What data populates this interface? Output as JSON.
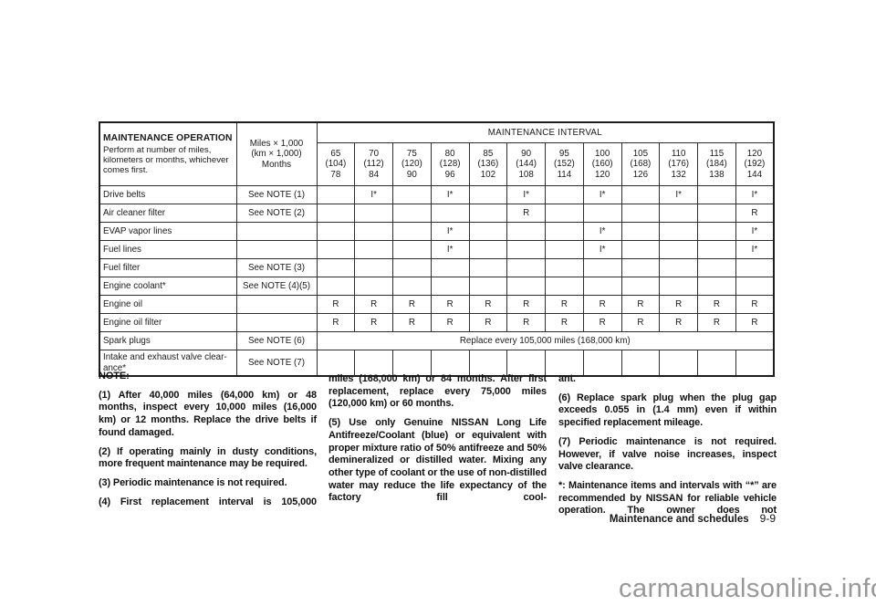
{
  "table": {
    "operation_title": "MAINTENANCE OPERATION",
    "operation_note": "Perform at number of miles, kilometers or months, whichever comes first.",
    "units": [
      "Miles × 1,000",
      "(km × 1,000)",
      "Months"
    ],
    "interval_title": "MAINTENANCE INTERVAL",
    "intervals": [
      {
        "miles": "65",
        "km": "(104)",
        "months": "78"
      },
      {
        "miles": "70",
        "km": "(112)",
        "months": "84"
      },
      {
        "miles": "75",
        "km": "(120)",
        "months": "90"
      },
      {
        "miles": "80",
        "km": "(128)",
        "months": "96"
      },
      {
        "miles": "85",
        "km": "(136)",
        "months": "102"
      },
      {
        "miles": "90",
        "km": "(144)",
        "months": "108"
      },
      {
        "miles": "95",
        "km": "(152)",
        "months": "114"
      },
      {
        "miles": "100",
        "km": "(160)",
        "months": "120"
      },
      {
        "miles": "105",
        "km": "(168)",
        "months": "126"
      },
      {
        "miles": "110",
        "km": "(176)",
        "months": "132"
      },
      {
        "miles": "115",
        "km": "(184)",
        "months": "138"
      },
      {
        "miles": "120",
        "km": "(192)",
        "months": "144"
      }
    ],
    "rows": [
      {
        "operation": [
          "Drive belts"
        ],
        "note": "See NOTE (1)",
        "cells": [
          "",
          "I*",
          "",
          "I*",
          "",
          "I*",
          "",
          "I*",
          "",
          "I*",
          "",
          "I*"
        ]
      },
      {
        "operation": [
          "Air cleaner filter"
        ],
        "note": "See NOTE (2)",
        "cells": [
          "",
          "",
          "",
          "",
          "",
          "R",
          "",
          "",
          "",
          "",
          "",
          "R"
        ]
      },
      {
        "operation": [
          "EVAP vapor lines"
        ],
        "note": "",
        "cells": [
          "",
          "",
          "",
          "I*",
          "",
          "",
          "",
          "I*",
          "",
          "",
          "",
          "I*"
        ]
      },
      {
        "operation": [
          "Fuel lines"
        ],
        "note": "",
        "cells": [
          "",
          "",
          "",
          "I*",
          "",
          "",
          "",
          "I*",
          "",
          "",
          "",
          "I*"
        ]
      },
      {
        "operation": [
          "Fuel filter"
        ],
        "note": "See NOTE (3)",
        "cells": [
          "",
          "",
          "",
          "",
          "",
          "",
          "",
          "",
          "",
          "",
          "",
          ""
        ]
      },
      {
        "operation": [
          "Engine coolant*"
        ],
        "note": "See NOTE (4)(5)",
        "cells": [
          "",
          "",
          "",
          "",
          "",
          "",
          "",
          "",
          "",
          "",
          "",
          ""
        ]
      },
      {
        "operation": [
          "Engine oil"
        ],
        "note": "",
        "cells": [
          "R",
          "R",
          "R",
          "R",
          "R",
          "R",
          "R",
          "R",
          "R",
          "R",
          "R",
          "R"
        ]
      },
      {
        "operation": [
          "Engine oil filter"
        ],
        "note": "",
        "cells": [
          "R",
          "R",
          "R",
          "R",
          "R",
          "R",
          "R",
          "R",
          "R",
          "R",
          "R",
          "R"
        ]
      },
      {
        "operation": [
          "Spark plugs"
        ],
        "note": "See NOTE (6)",
        "span_text": "Replace every 105,000 miles (168,000 km)"
      },
      {
        "operation": [
          "Intake and exhaust valve clear-",
          "ance*"
        ],
        "note": "See NOTE (7)",
        "cells": [
          "",
          "",
          "",
          "",
          "",
          "",
          "",
          "",
          "",
          "",
          "",
          ""
        ]
      }
    ]
  },
  "notes": {
    "heading": "NOTE:",
    "col1": [
      "(1) After 40,000 miles (64,000 km) or 48 months, inspect every 10,000 miles (16,000 km) or 12 months. Replace the drive belts if found damaged.",
      "(2) If operating mainly in dusty conditions, more frequent maintenance may be required.",
      "(3) Periodic maintenance is not required.",
      "(4) First replacement interval is 105,000"
    ],
    "col2": [
      "miles (168,000 km) or 84 months. After first replacement, replace every 75,000 miles (120,000 km) or 60 months.",
      "(5) Use only Genuine NISSAN Long Life Antifreeze/Coolant (blue) or equivalent with proper mixture ratio of 50% antifreeze and 50% demineralized or distilled water. Mixing any other type of coolant or the use of non-distilled water may reduce the life expectancy of the factory fill cool-"
    ],
    "col3": [
      "ant.",
      "(6) Replace spark plug when the plug gap exceeds 0.055 in (1.4 mm) even if within specified replacement mileage.",
      "(7) Periodic maintenance is not required. However, if valve noise increases, inspect valve clearance.",
      "*: Maintenance items and intervals with “*” are recommended by NISSAN for reliable vehicle operation. The owner does not"
    ]
  },
  "footer": {
    "section": "Maintenance and schedules",
    "page": "9-9"
  },
  "watermark": "carmanualsonline.info"
}
